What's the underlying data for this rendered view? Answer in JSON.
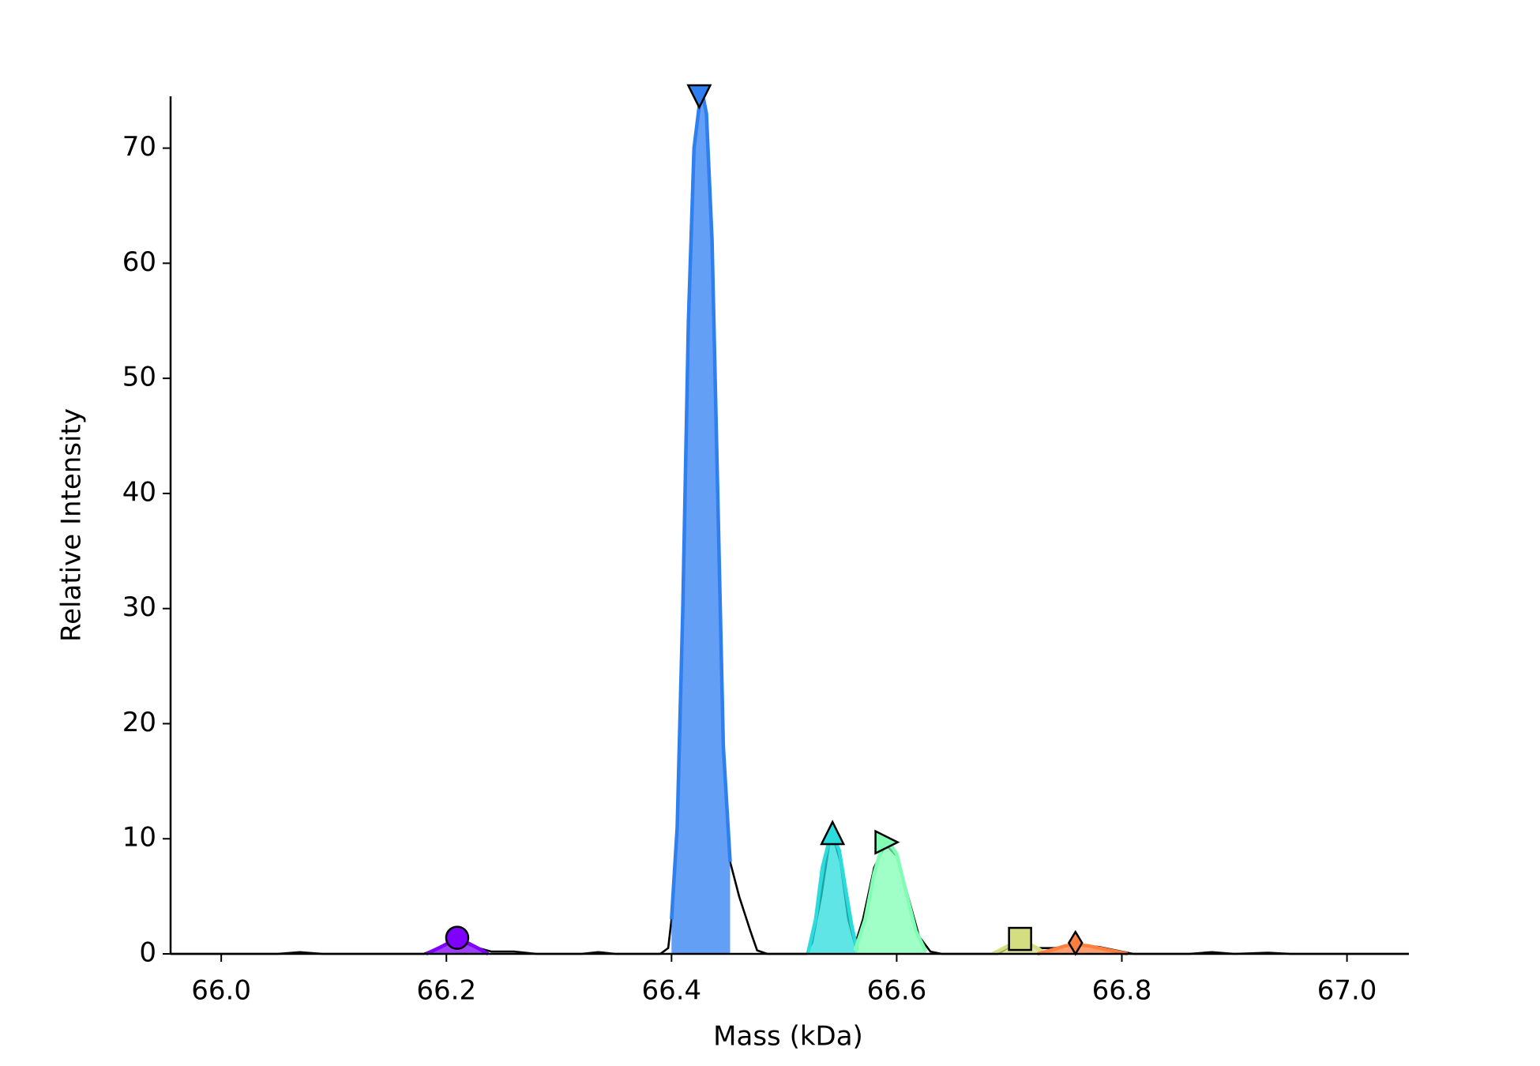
{
  "chart_data": {
    "type": "line",
    "xlabel": "Mass (kDa)",
    "ylabel": "Relative Intensity",
    "xlim": [
      65.955,
      67.055
    ],
    "ylim": [
      0,
      74.5
    ],
    "xticks": [
      {
        "value": 66.0,
        "label": "66.0"
      },
      {
        "value": 66.2,
        "label": "66.2"
      },
      {
        "value": 66.4,
        "label": "66.4"
      },
      {
        "value": 66.6,
        "label": "66.6"
      },
      {
        "value": 66.8,
        "label": "66.8"
      },
      {
        "value": 67.0,
        "label": "67.0"
      }
    ],
    "yticks": [
      0,
      10,
      20,
      30,
      40,
      50,
      60,
      70
    ],
    "color": "#000000",
    "x": [
      65.955,
      66.05,
      66.07,
      66.09,
      66.18,
      66.195,
      66.21,
      66.225,
      66.24,
      66.26,
      66.28,
      66.32,
      66.335,
      66.35,
      66.39,
      66.397,
      66.4,
      66.405,
      66.41,
      66.415,
      66.42,
      66.425,
      66.428,
      66.431,
      66.436,
      66.441,
      66.446,
      66.452,
      66.456,
      66.46,
      66.465,
      66.47,
      66.476,
      66.485,
      66.52,
      66.525,
      66.533,
      66.54,
      66.544,
      66.55,
      66.557,
      66.563,
      66.57,
      66.58,
      66.59,
      66.6,
      66.61,
      66.62,
      66.63,
      66.64,
      66.69,
      66.7,
      66.71,
      66.725,
      66.74,
      66.76,
      66.78,
      66.8,
      66.81,
      66.86,
      66.88,
      66.9,
      66.93,
      66.95,
      67.055
    ],
    "values": [
      0,
      0,
      0.15,
      0,
      0,
      0.6,
      1.2,
      0.6,
      0.2,
      0.2,
      0,
      0,
      0.15,
      0,
      0,
      0.5,
      3,
      11,
      30,
      55,
      70,
      74,
      74.5,
      73,
      62,
      40,
      18,
      8,
      6.5,
      5,
      3.5,
      2,
      0.3,
      0,
      0,
      1,
      5,
      9.5,
      10,
      8,
      3,
      0.8,
      3,
      7.5,
      9.5,
      8.5,
      5,
      1.5,
      0.2,
      0,
      0,
      0.6,
      1,
      0.5,
      0.5,
      0.8,
      0.6,
      0.2,
      0,
      0,
      0.15,
      0,
      0.1,
      0,
      0
    ],
    "peaks": [
      {
        "color": "#8000ff",
        "x": [
          66.182,
          66.193,
          66.203,
          66.21,
          66.218,
          66.228,
          66.237
        ],
        "values": [
          0,
          0.5,
          1,
          1.2,
          1,
          0.5,
          0
        ],
        "marker": {
          "shape": "circle",
          "x": 66.2096,
          "y": 1.4
        }
      },
      {
        "color": "#2f7ff0",
        "x": [
          66.4,
          66.405,
          66.41,
          66.415,
          66.42,
          66.425,
          66.428,
          66.431,
          66.436,
          66.441,
          66.446,
          66.452
        ],
        "values": [
          3,
          11,
          30,
          55,
          70,
          74,
          74.5,
          73,
          62,
          40,
          18,
          8
        ],
        "marker": {
          "shape": "triangle-down",
          "x": 66.4246,
          "y": 74.5
        }
      },
      {
        "color": "#2adcdc",
        "x": [
          66.521,
          66.528,
          66.534,
          66.54,
          66.544,
          66.549,
          66.554,
          66.56,
          66.565
        ],
        "values": [
          0,
          3,
          7.5,
          9.8,
          10,
          9,
          6,
          2.5,
          0.3
        ],
        "marker": {
          "shape": "triangle-up",
          "x": 66.543,
          "y": 10.5
        }
      },
      {
        "color": "#80ffb4",
        "x": [
          66.563,
          66.572,
          66.58,
          66.587,
          66.593,
          66.6,
          66.608,
          66.617,
          66.626
        ],
        "values": [
          0.3,
          3,
          7,
          9.3,
          9.7,
          8.7,
          5.5,
          2,
          0.2
        ],
        "marker": {
          "shape": "triangle-right",
          "x": 66.591,
          "y": 9.7
        }
      },
      {
        "color": "#d4dd80",
        "x": [
          66.685,
          66.695,
          66.703,
          66.71,
          66.717,
          66.725,
          66.733
        ],
        "values": [
          0,
          0.5,
          0.9,
          1,
          0.9,
          0.5,
          0
        ],
        "marker": {
          "shape": "square",
          "x": 66.7096,
          "y": 1.3
        }
      },
      {
        "color": "#ff7f40",
        "x": [
          66.725,
          66.74,
          66.75,
          66.76,
          66.77,
          66.785,
          66.805
        ],
        "values": [
          0,
          0.4,
          0.7,
          0.8,
          0.7,
          0.4,
          0
        ],
        "marker": {
          "shape": "thin-diamond",
          "x": 66.7588,
          "y": 0.95
        }
      }
    ]
  }
}
